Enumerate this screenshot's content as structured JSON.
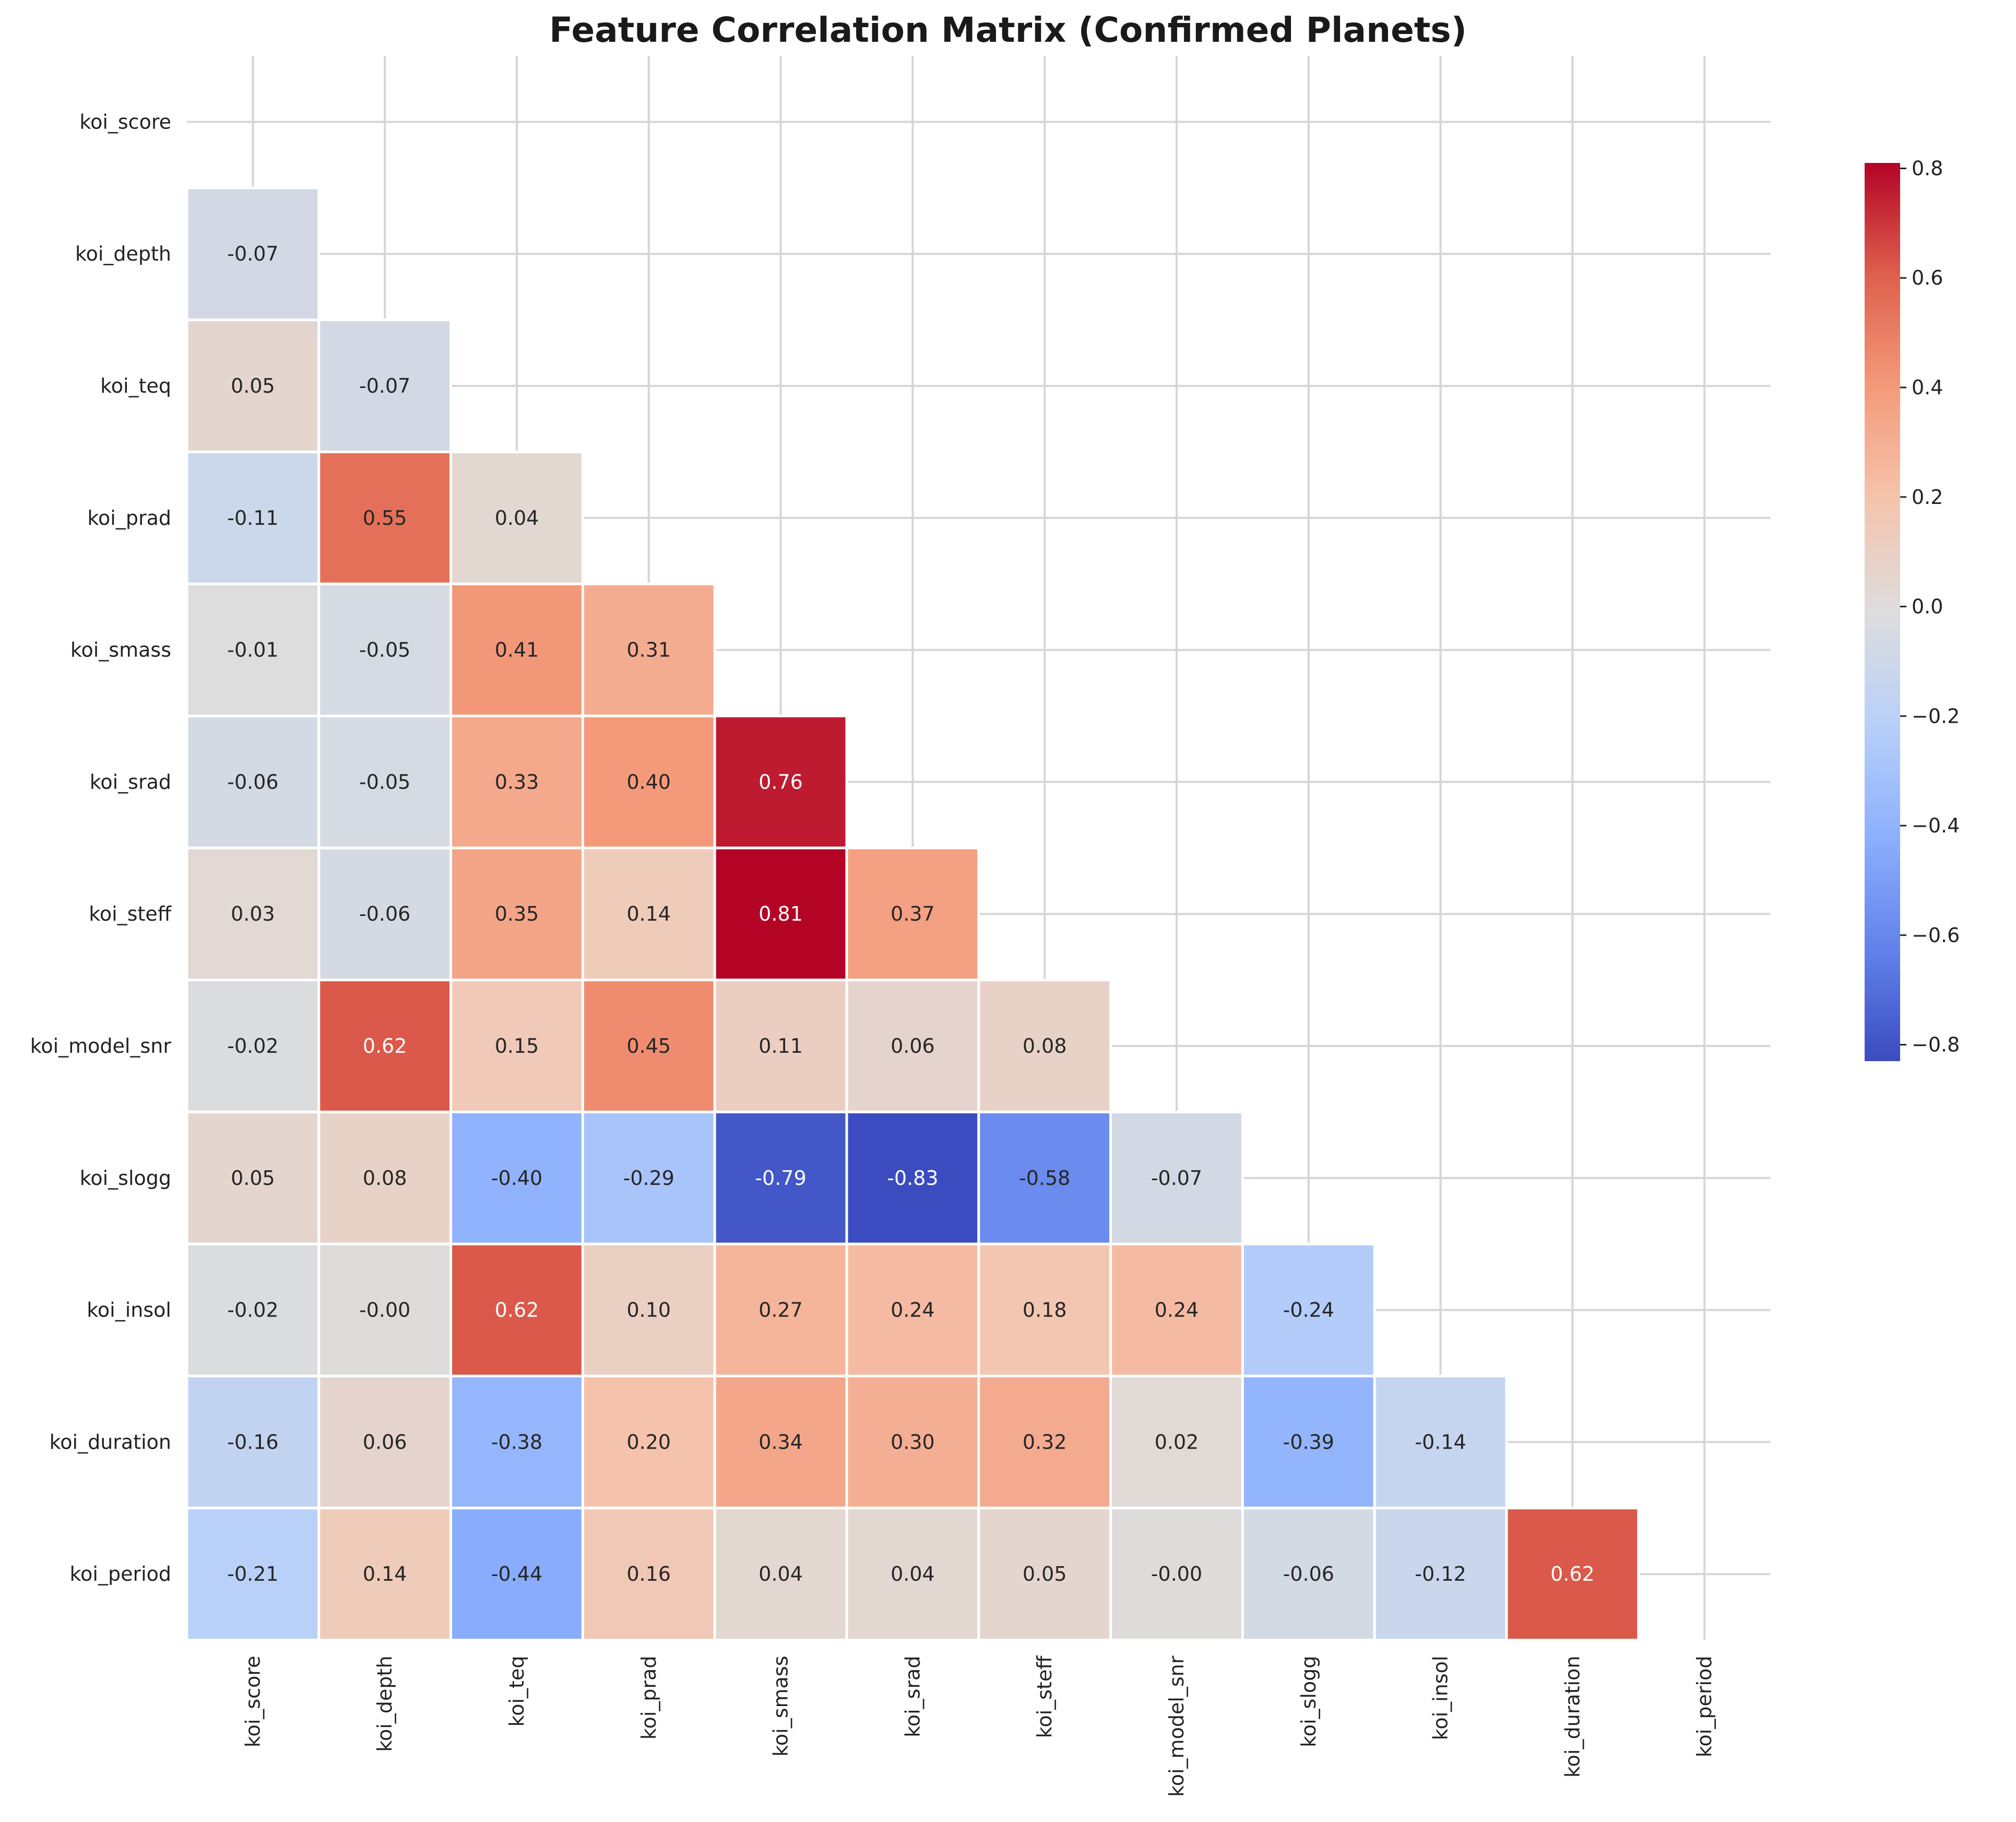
{
  "chart_data": {
    "type": "heatmap",
    "title": "Feature Correlation Matrix (Confirmed Planets)",
    "xlabel": "",
    "ylabel": "",
    "colormap": "coolwarm",
    "mask": "upper-triangle-including-diagonal",
    "grid": true,
    "annotation_format": "0.00",
    "row_labels": [
      "koi_score",
      "koi_depth",
      "koi_teq",
      "koi_prad",
      "koi_smass",
      "koi_srad",
      "koi_steff",
      "koi_model_snr",
      "koi_slogg",
      "koi_insol",
      "koi_duration",
      "koi_period"
    ],
    "col_labels": [
      "koi_score",
      "koi_depth",
      "koi_teq",
      "koi_prad",
      "koi_smass",
      "koi_srad",
      "koi_steff",
      "koi_model_snr",
      "koi_slogg",
      "koi_insol",
      "koi_duration",
      "koi_period"
    ],
    "values": [
      [],
      [
        -0.07
      ],
      [
        0.05,
        -0.07
      ],
      [
        -0.11,
        0.55,
        0.04
      ],
      [
        -0.01,
        -0.05,
        0.41,
        0.31
      ],
      [
        -0.06,
        -0.05,
        0.33,
        0.4,
        0.76
      ],
      [
        0.03,
        -0.06,
        0.35,
        0.14,
        0.81,
        0.37
      ],
      [
        -0.02,
        0.62,
        0.15,
        0.45,
        0.11,
        0.06,
        0.08
      ],
      [
        0.05,
        0.08,
        -0.4,
        -0.29,
        -0.79,
        -0.83,
        -0.58,
        -0.07
      ],
      [
        -0.02,
        -0.0,
        0.62,
        0.1,
        0.27,
        0.24,
        0.18,
        0.24,
        -0.24
      ],
      [
        -0.16,
        0.06,
        -0.38,
        0.2,
        0.34,
        0.3,
        0.32,
        0.02,
        -0.39,
        -0.14
      ],
      [
        -0.21,
        0.14,
        -0.44,
        0.16,
        0.04,
        0.04,
        0.05,
        -0.0,
        -0.06,
        -0.12,
        0.62
      ]
    ],
    "value_labels": [
      [],
      [
        "-0.07"
      ],
      [
        "0.05",
        "-0.07"
      ],
      [
        "-0.11",
        "0.55",
        "0.04"
      ],
      [
        "-0.01",
        "-0.05",
        "0.41",
        "0.31"
      ],
      [
        "-0.06",
        "-0.05",
        "0.33",
        "0.40",
        "0.76"
      ],
      [
        "0.03",
        "-0.06",
        "0.35",
        "0.14",
        "0.81",
        "0.37"
      ],
      [
        "-0.02",
        "0.62",
        "0.15",
        "0.45",
        "0.11",
        "0.06",
        "0.08"
      ],
      [
        "0.05",
        "0.08",
        "-0.40",
        "-0.29",
        "-0.79",
        "-0.83",
        "-0.58",
        "-0.07"
      ],
      [
        "-0.02",
        "-0.00",
        "0.62",
        "0.10",
        "0.27",
        "0.24",
        "0.18",
        "0.24",
        "-0.24"
      ],
      [
        "-0.16",
        "0.06",
        "-0.38",
        "0.20",
        "0.34",
        "0.30",
        "0.32",
        "0.02",
        "-0.39",
        "-0.14"
      ],
      [
        "-0.21",
        "0.14",
        "-0.44",
        "0.16",
        "0.04",
        "0.04",
        "0.05",
        "-0.00",
        "-0.06",
        "-0.12",
        "0.62"
      ]
    ],
    "colorbar": {
      "vmin": -0.83,
      "vmax": 0.81,
      "ticks": [
        0.8,
        0.6,
        0.4,
        0.2,
        0.0,
        -0.2,
        -0.4,
        -0.6,
        -0.8
      ],
      "tick_labels": [
        "0.8",
        "0.6",
        "0.4",
        "0.2",
        "0.0",
        "−0.2",
        "−0.4",
        "−0.6",
        "−0.8"
      ]
    }
  }
}
